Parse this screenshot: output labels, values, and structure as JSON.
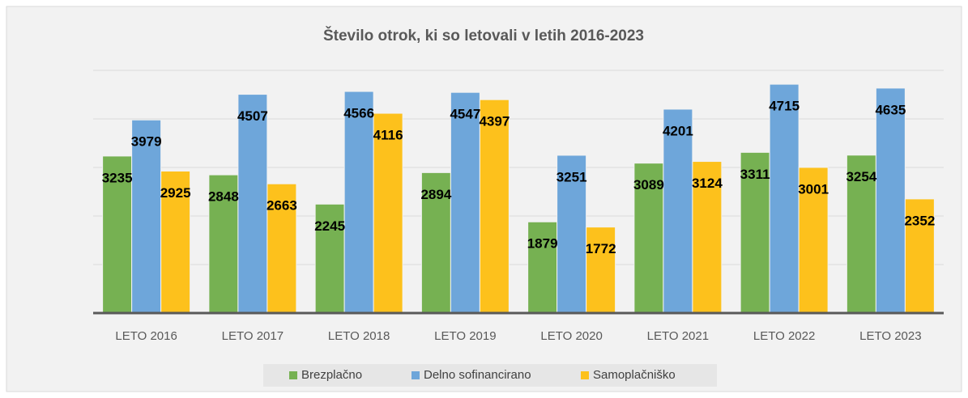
{
  "chart_data": {
    "type": "bar",
    "title": "Število otrok, ki so letovali v letih 2016-2023",
    "categories": [
      "LETO 2016",
      "LETO 2017",
      "LETO 2018",
      "LETO 2019",
      "LETO 2020",
      "LETO 2021",
      "LETO 2022",
      "LETO 2023"
    ],
    "series": [
      {
        "name": "Brezplačno",
        "color": "#76b152",
        "values": [
          3235,
          2848,
          2245,
          2894,
          1879,
          3089,
          3311,
          3254
        ]
      },
      {
        "name": "Delno sofinancirano",
        "color": "#6ea6da",
        "values": [
          3979,
          4507,
          4566,
          4547,
          3251,
          4201,
          4715,
          4635
        ]
      },
      {
        "name": "Samoplačniško",
        "color": "#fdc11c",
        "values": [
          2925,
          2663,
          4116,
          4397,
          1772,
          3124,
          3001,
          2352
        ]
      }
    ],
    "ylim": [
      0,
      5000
    ],
    "yticks": [
      0,
      1000,
      2000,
      3000,
      4000,
      5000
    ],
    "grid": true,
    "legend": "bottom"
  }
}
